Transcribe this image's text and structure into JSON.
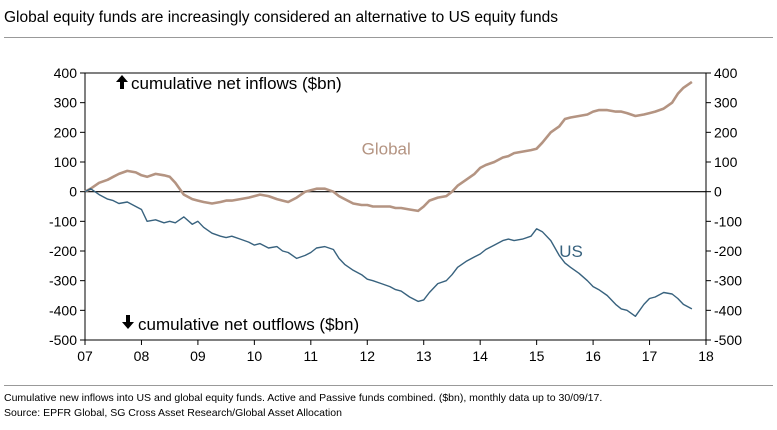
{
  "header": {
    "title": "Global equity funds are increasingly considered an alternative to US equity funds"
  },
  "footer": {
    "note": "Cumulative new inflows into US and global equity funds. Active and Passive funds combined. ($bn), monthly data up to 30/09/17.",
    "source": "Source: EPFR Global, SG Cross Asset Research/Global Asset Allocation"
  },
  "chart_data": {
    "type": "line",
    "title": "Global equity funds are increasingly considered an alternative to US equity funds",
    "xlabel": "",
    "ylabel": "",
    "xlim": [
      7,
      18
    ],
    "ylim": [
      -500,
      400
    ],
    "x_ticks": [
      7,
      8,
      9,
      10,
      11,
      12,
      13,
      14,
      15,
      16,
      17,
      18
    ],
    "x_tick_labels": [
      "07",
      "08",
      "09",
      "10",
      "11",
      "12",
      "13",
      "14",
      "15",
      "16",
      "17",
      "18"
    ],
    "y_ticks": [
      400,
      300,
      200,
      100,
      0,
      -100,
      -200,
      -300,
      -400,
      -500
    ],
    "y_tick_labels": [
      "400",
      "300",
      "200",
      "100",
      "0",
      "-100",
      "-200",
      "-300",
      "-400",
      "-500"
    ],
    "dual_axis": true,
    "grid": false,
    "zero_line": true,
    "annotations": {
      "inflows": "cumulative  net  inflows  ($bn)",
      "outflows": "cumulative  net  outflows  ($bn)",
      "inflows_icon": "arrow-up-icon",
      "outflows_icon": "arrow-down-icon"
    },
    "series": [
      {
        "name": "Global",
        "color": "#b49482",
        "points": [
          [
            7.0,
            0
          ],
          [
            7.1,
            10
          ],
          [
            7.25,
            30
          ],
          [
            7.4,
            40
          ],
          [
            7.5,
            50
          ],
          [
            7.6,
            60
          ],
          [
            7.75,
            70
          ],
          [
            7.9,
            65
          ],
          [
            8.0,
            55
          ],
          [
            8.1,
            50
          ],
          [
            8.25,
            60
          ],
          [
            8.4,
            55
          ],
          [
            8.5,
            50
          ],
          [
            8.6,
            30
          ],
          [
            8.75,
            -10
          ],
          [
            8.9,
            -25
          ],
          [
            9.0,
            -30
          ],
          [
            9.1,
            -35
          ],
          [
            9.25,
            -40
          ],
          [
            9.4,
            -35
          ],
          [
            9.5,
            -30
          ],
          [
            9.6,
            -30
          ],
          [
            9.75,
            -25
          ],
          [
            9.9,
            -20
          ],
          [
            10.0,
            -15
          ],
          [
            10.1,
            -10
          ],
          [
            10.25,
            -15
          ],
          [
            10.4,
            -25
          ],
          [
            10.5,
            -30
          ],
          [
            10.6,
            -35
          ],
          [
            10.75,
            -20
          ],
          [
            10.9,
            0
          ],
          [
            11.0,
            5
          ],
          [
            11.1,
            10
          ],
          [
            11.25,
            10
          ],
          [
            11.4,
            0
          ],
          [
            11.5,
            -15
          ],
          [
            11.6,
            -25
          ],
          [
            11.75,
            -40
          ],
          [
            11.9,
            -45
          ],
          [
            12.0,
            -45
          ],
          [
            12.1,
            -50
          ],
          [
            12.25,
            -50
          ],
          [
            12.4,
            -50
          ],
          [
            12.5,
            -55
          ],
          [
            12.6,
            -55
          ],
          [
            12.75,
            -60
          ],
          [
            12.9,
            -65
          ],
          [
            13.0,
            -50
          ],
          [
            13.1,
            -30
          ],
          [
            13.25,
            -20
          ],
          [
            13.4,
            -15
          ],
          [
            13.5,
            0
          ],
          [
            13.6,
            20
          ],
          [
            13.75,
            40
          ],
          [
            13.9,
            60
          ],
          [
            14.0,
            80
          ],
          [
            14.1,
            90
          ],
          [
            14.25,
            100
          ],
          [
            14.4,
            115
          ],
          [
            14.5,
            120
          ],
          [
            14.6,
            130
          ],
          [
            14.75,
            135
          ],
          [
            14.9,
            140
          ],
          [
            15.0,
            145
          ],
          [
            15.1,
            165
          ],
          [
            15.25,
            200
          ],
          [
            15.4,
            220
          ],
          [
            15.5,
            245
          ],
          [
            15.6,
            250
          ],
          [
            15.75,
            255
          ],
          [
            15.9,
            260
          ],
          [
            16.0,
            270
          ],
          [
            16.1,
            275
          ],
          [
            16.25,
            275
          ],
          [
            16.4,
            270
          ],
          [
            16.5,
            270
          ],
          [
            16.6,
            265
          ],
          [
            16.75,
            255
          ],
          [
            16.9,
            260
          ],
          [
            17.0,
            265
          ],
          [
            17.1,
            270
          ],
          [
            17.25,
            280
          ],
          [
            17.4,
            300
          ],
          [
            17.5,
            330
          ],
          [
            17.6,
            350
          ],
          [
            17.75,
            370
          ]
        ]
      },
      {
        "name": "US",
        "color": "#38627e",
        "points": [
          [
            7.0,
            0
          ],
          [
            7.1,
            10
          ],
          [
            7.25,
            -10
          ],
          [
            7.4,
            -25
          ],
          [
            7.5,
            -30
          ],
          [
            7.6,
            -40
          ],
          [
            7.75,
            -35
          ],
          [
            7.9,
            -50
          ],
          [
            8.0,
            -60
          ],
          [
            8.1,
            -100
          ],
          [
            8.25,
            -95
          ],
          [
            8.4,
            -105
          ],
          [
            8.5,
            -100
          ],
          [
            8.6,
            -105
          ],
          [
            8.75,
            -85
          ],
          [
            8.9,
            -110
          ],
          [
            9.0,
            -100
          ],
          [
            9.1,
            -120
          ],
          [
            9.25,
            -140
          ],
          [
            9.4,
            -150
          ],
          [
            9.5,
            -155
          ],
          [
            9.6,
            -150
          ],
          [
            9.75,
            -160
          ],
          [
            9.9,
            -170
          ],
          [
            10.0,
            -180
          ],
          [
            10.1,
            -175
          ],
          [
            10.25,
            -190
          ],
          [
            10.4,
            -185
          ],
          [
            10.5,
            -200
          ],
          [
            10.6,
            -205
          ],
          [
            10.75,
            -225
          ],
          [
            10.9,
            -215
          ],
          [
            11.0,
            -205
          ],
          [
            11.1,
            -190
          ],
          [
            11.25,
            -185
          ],
          [
            11.4,
            -195
          ],
          [
            11.5,
            -225
          ],
          [
            11.6,
            -245
          ],
          [
            11.75,
            -265
          ],
          [
            11.9,
            -280
          ],
          [
            12.0,
            -295
          ],
          [
            12.1,
            -300
          ],
          [
            12.25,
            -310
          ],
          [
            12.4,
            -320
          ],
          [
            12.5,
            -330
          ],
          [
            12.6,
            -335
          ],
          [
            12.75,
            -355
          ],
          [
            12.9,
            -370
          ],
          [
            13.0,
            -365
          ],
          [
            13.1,
            -340
          ],
          [
            13.25,
            -310
          ],
          [
            13.4,
            -300
          ],
          [
            13.5,
            -280
          ],
          [
            13.6,
            -255
          ],
          [
            13.75,
            -235
          ],
          [
            13.9,
            -220
          ],
          [
            14.0,
            -210
          ],
          [
            14.1,
            -195
          ],
          [
            14.25,
            -180
          ],
          [
            14.4,
            -165
          ],
          [
            14.5,
            -160
          ],
          [
            14.6,
            -165
          ],
          [
            14.75,
            -160
          ],
          [
            14.9,
            -150
          ],
          [
            15.0,
            -125
          ],
          [
            15.1,
            -135
          ],
          [
            15.25,
            -165
          ],
          [
            15.4,
            -215
          ],
          [
            15.5,
            -240
          ],
          [
            15.6,
            -255
          ],
          [
            15.75,
            -275
          ],
          [
            15.9,
            -300
          ],
          [
            16.0,
            -320
          ],
          [
            16.1,
            -330
          ],
          [
            16.25,
            -350
          ],
          [
            16.4,
            -380
          ],
          [
            16.5,
            -395
          ],
          [
            16.6,
            -400
          ],
          [
            16.75,
            -420
          ],
          [
            16.9,
            -380
          ],
          [
            17.0,
            -360
          ],
          [
            17.1,
            -355
          ],
          [
            17.25,
            -340
          ],
          [
            17.4,
            -345
          ],
          [
            17.5,
            -360
          ],
          [
            17.6,
            -380
          ],
          [
            17.75,
            -395
          ]
        ]
      }
    ],
    "series_labels": [
      {
        "text": "Global",
        "x": 11.9,
        "y": 125,
        "color": "#b49482"
      },
      {
        "text": "US",
        "x": 15.4,
        "y": -220,
        "color": "#38627e"
      }
    ]
  }
}
